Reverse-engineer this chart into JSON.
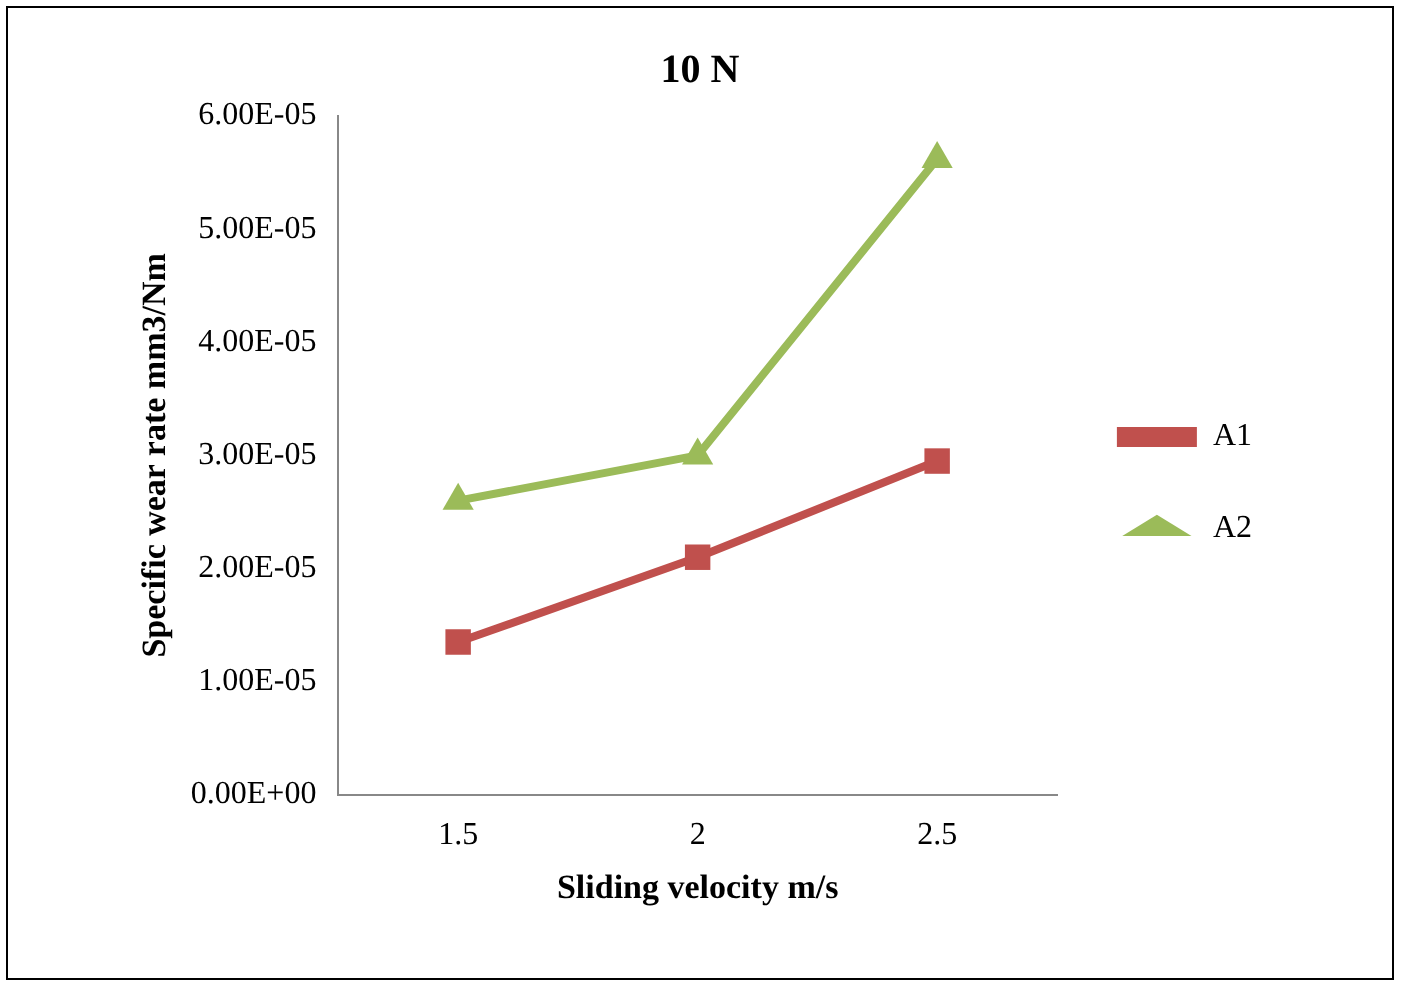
{
  "chart_data": {
    "type": "line",
    "title": "10 N",
    "xlabel": "Sliding velocity m/s",
    "ylabel": "Specific wear rate mm3/Nm",
    "categories": [
      "1.5",
      "2",
      "2.5"
    ],
    "series": [
      {
        "name": "A1",
        "color": "#c0504d",
        "marker": "square",
        "values": [
          1.35e-05,
          2.1e-05,
          2.95e-05
        ]
      },
      {
        "name": "A2",
        "color": "#9bbb59",
        "marker": "triangle",
        "values": [
          2.6e-05,
          3e-05,
          5.62e-05
        ]
      }
    ],
    "ylim": [
      0,
      6e-05
    ],
    "yticks": [
      {
        "value": 0,
        "label": "0.00E+00"
      },
      {
        "value": 1e-05,
        "label": "1.00E-05"
      },
      {
        "value": 2e-05,
        "label": "2.00E-05"
      },
      {
        "value": 3e-05,
        "label": "3.00E-05"
      },
      {
        "value": 4e-05,
        "label": "4.00E-05"
      },
      {
        "value": 5e-05,
        "label": "5.00E-05"
      },
      {
        "value": 6e-05,
        "label": "6.00E-05"
      }
    ],
    "grid": false,
    "legend": "right",
    "line_style": "solid"
  }
}
